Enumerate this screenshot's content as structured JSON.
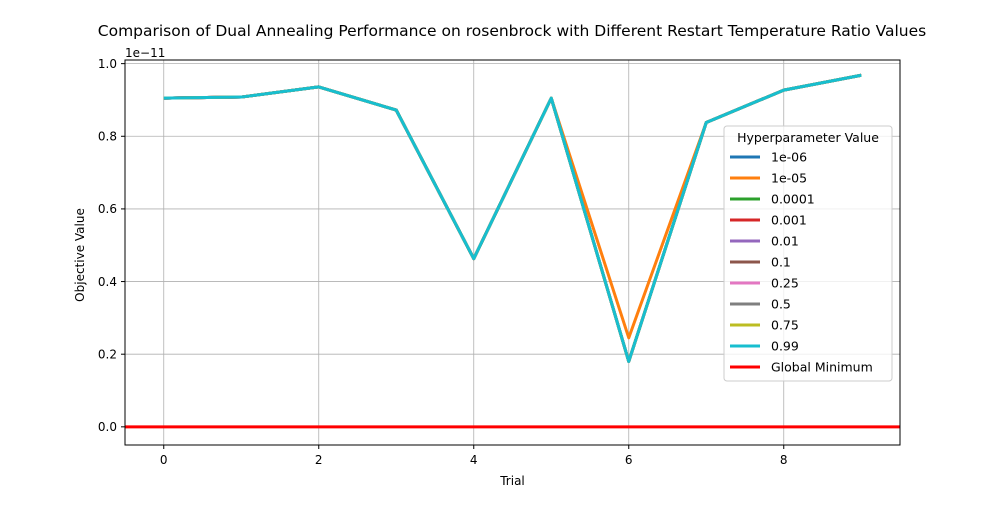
{
  "chart_data": {
    "type": "line",
    "title": "Comparison of Dual Annealing Performance on rosenbrock with Different Restart Temperature Ratio Values",
    "xlabel": "Trial",
    "ylabel": "Objective Value",
    "y_offset_text": "1e−11",
    "y_scale_exponent": -11,
    "xlim": [
      -0.5,
      9.5
    ],
    "ylim": [
      -0.05,
      1.01
    ],
    "xticks": [
      0,
      2,
      4,
      6,
      8
    ],
    "xtick_labels": [
      "0",
      "2",
      "4",
      "6",
      "8"
    ],
    "yticks": [
      0.0,
      0.2,
      0.4,
      0.6,
      0.8,
      1.0
    ],
    "ytick_labels": [
      "0.0",
      "0.2",
      "0.4",
      "0.6",
      "0.8",
      "1.0"
    ],
    "grid": true,
    "legend": {
      "title": "Hyperparameter Value",
      "placement": "center-right"
    },
    "x": [
      0,
      1,
      2,
      3,
      4,
      5,
      6,
      7,
      8,
      9
    ],
    "series": [
      {
        "name": "1e-06",
        "color": "#1f77b4",
        "values": [
          0.905,
          0.908,
          0.936,
          0.872,
          0.463,
          0.905,
          0.18,
          0.838,
          0.927,
          0.968
        ]
      },
      {
        "name": "1e-05",
        "color": "#ff7f0e",
        "values": [
          0.905,
          0.908,
          0.936,
          0.872,
          0.463,
          0.905,
          0.245,
          0.838,
          0.927,
          0.968
        ]
      },
      {
        "name": "0.0001",
        "color": "#2ca02c",
        "values": [
          0.905,
          0.908,
          0.936,
          0.872,
          0.463,
          0.905,
          0.18,
          0.838,
          0.927,
          0.968
        ]
      },
      {
        "name": "0.001",
        "color": "#d62728",
        "values": [
          0.905,
          0.908,
          0.936,
          0.872,
          0.463,
          0.905,
          0.18,
          0.838,
          0.927,
          0.968
        ]
      },
      {
        "name": "0.01",
        "color": "#9467bd",
        "values": [
          0.905,
          0.908,
          0.936,
          0.872,
          0.463,
          0.905,
          0.18,
          0.838,
          0.927,
          0.968
        ]
      },
      {
        "name": "0.1",
        "color": "#8c564b",
        "values": [
          0.905,
          0.908,
          0.936,
          0.872,
          0.463,
          0.905,
          0.18,
          0.838,
          0.927,
          0.968
        ]
      },
      {
        "name": "0.25",
        "color": "#e377c2",
        "values": [
          0.905,
          0.908,
          0.936,
          0.872,
          0.463,
          0.905,
          0.18,
          0.838,
          0.927,
          0.968
        ]
      },
      {
        "name": "0.5",
        "color": "#7f7f7f",
        "values": [
          0.905,
          0.908,
          0.936,
          0.872,
          0.463,
          0.905,
          0.18,
          0.838,
          0.927,
          0.968
        ]
      },
      {
        "name": "0.75",
        "color": "#bcbd22",
        "values": [
          0.905,
          0.908,
          0.936,
          0.872,
          0.463,
          0.905,
          0.18,
          0.838,
          0.927,
          0.968
        ]
      },
      {
        "name": "0.99",
        "color": "#17becf",
        "values": [
          0.905,
          0.908,
          0.936,
          0.872,
          0.463,
          0.905,
          0.18,
          0.838,
          0.927,
          0.968
        ]
      }
    ],
    "reference_line": {
      "name": "Global Minimum",
      "color": "#ff0000",
      "y": 0.0
    }
  }
}
